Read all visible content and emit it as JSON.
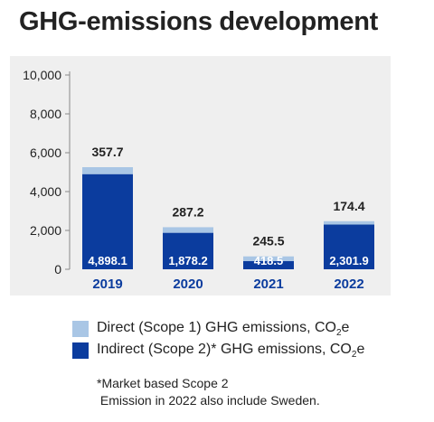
{
  "title": "GHG-emissions development",
  "colors": {
    "direct": "#a9c6e5",
    "indirect": "#0b3c9e",
    "background": "#efefef"
  },
  "chart_data": {
    "type": "bar",
    "stacked": true,
    "categories": [
      "2019",
      "2020",
      "2021",
      "2022"
    ],
    "series": [
      {
        "name": "Indirect (Scope 2)* GHG emissions, CO2e",
        "values": [
          4898.1,
          1878.2,
          418.5,
          2301.9
        ]
      },
      {
        "name": "Direct (Scope 1) GHG emissions, CO2e",
        "values": [
          357.7,
          287.2,
          245.5,
          174.4
        ]
      }
    ],
    "value_labels": {
      "indirect": [
        "4,898.1",
        "1,878.2",
        "418.5",
        "2,301.9"
      ],
      "direct": [
        "357.7",
        "287.2",
        "245.5",
        "174.4"
      ]
    },
    "ylim": [
      0,
      10000
    ],
    "yticks": [
      "0",
      "2,000",
      "4,000",
      "6,000",
      "8,000",
      "10,000"
    ],
    "grid": false,
    "legend_position": "bottom"
  },
  "legend": {
    "direct_label": "Direct (Scope 1) GHG emissions, CO",
    "direct_sub": "2",
    "direct_suffix": "e",
    "indirect_label": "Indirect (Scope 2)* GHG emissions, CO",
    "indirect_sub": "2",
    "indirect_suffix": "e"
  },
  "notes": {
    "line1": "*Market based Scope 2",
    "line2": " Emission in 2022 also include Sweden."
  }
}
